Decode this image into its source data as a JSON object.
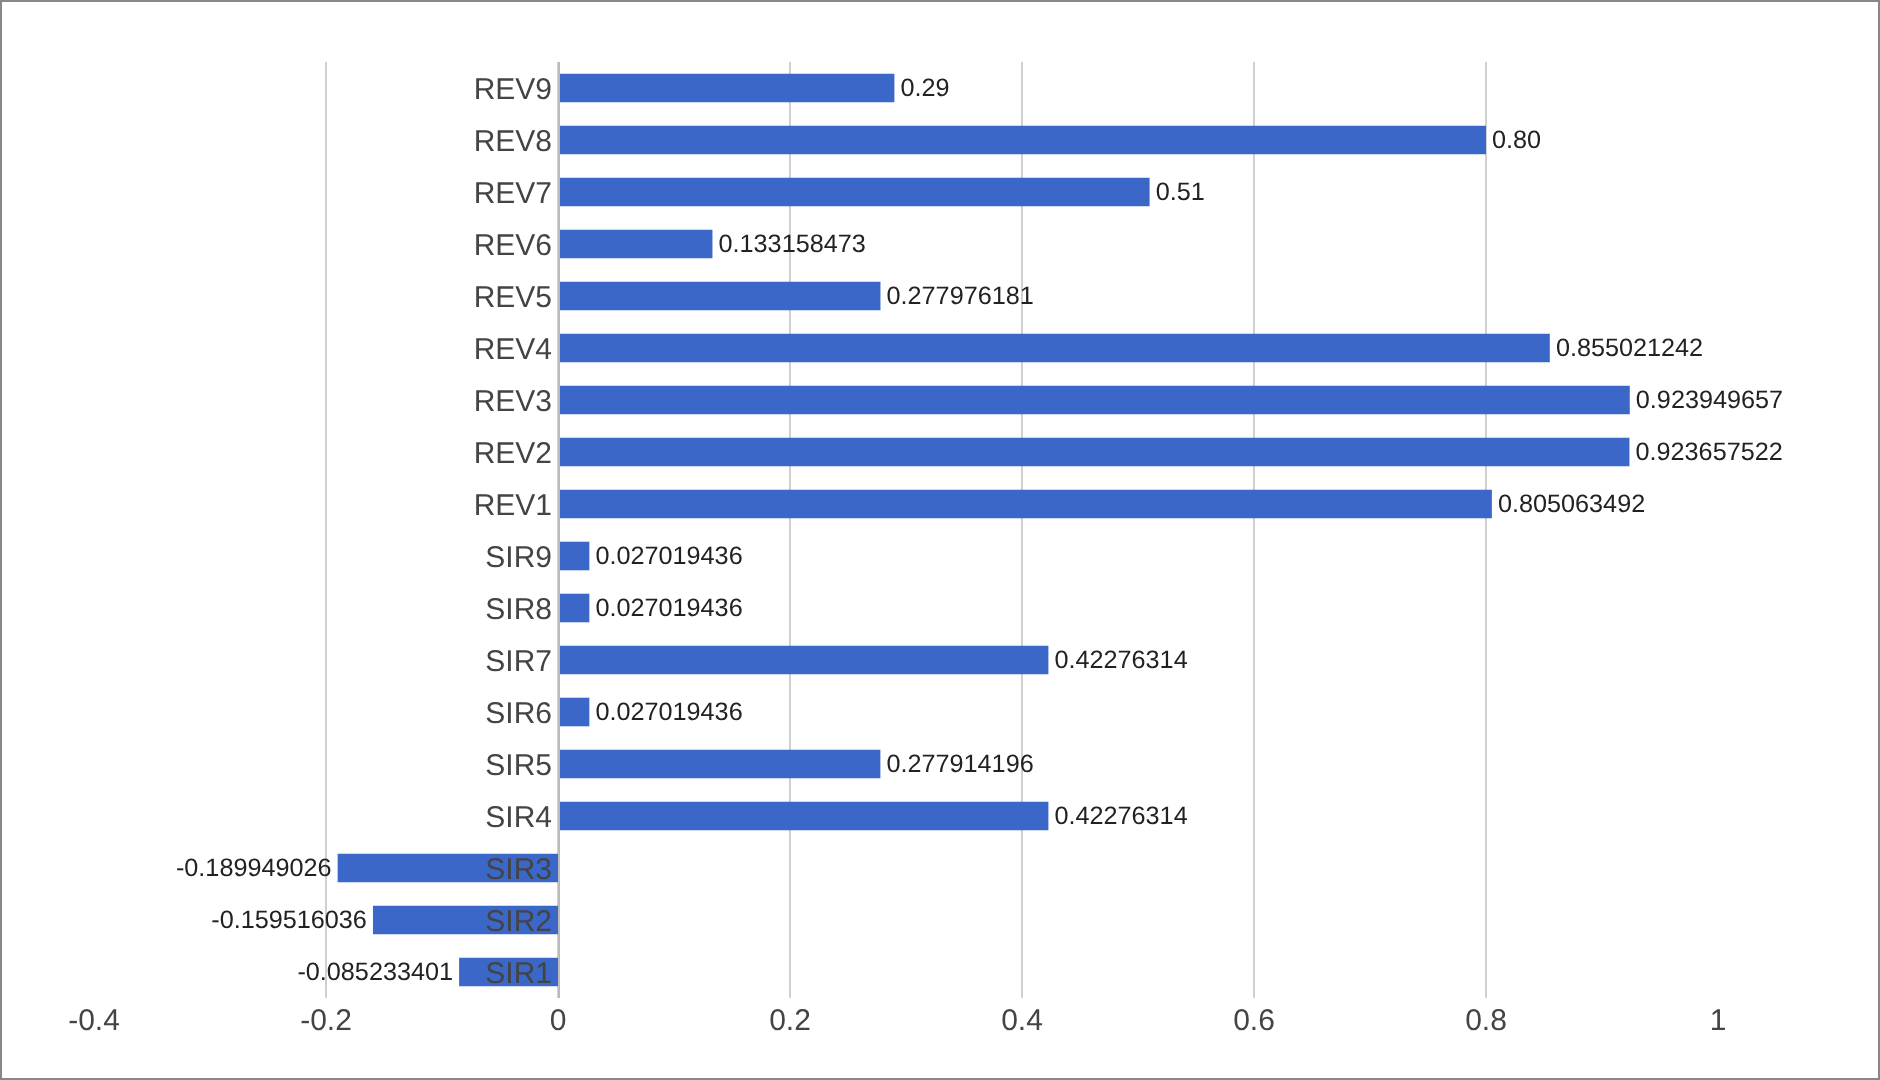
{
  "chart_data": {
    "type": "bar",
    "orientation": "horizontal",
    "categories": [
      "REV9",
      "REV8",
      "REV7",
      "REV6",
      "REV5",
      "REV4",
      "REV3",
      "REV2",
      "REV1",
      "SIR9",
      "SIR8",
      "SIR7",
      "SIR6",
      "SIR5",
      "SIR4",
      "SIR3",
      "SIR2",
      "SIR1"
    ],
    "values": [
      0.29,
      0.8,
      0.51,
      0.133158473,
      0.277976181,
      0.855021242,
      0.923949657,
      0.923657522,
      0.805063492,
      0.027019436,
      0.027019436,
      0.42276314,
      0.027019436,
      0.277914196,
      0.42276314,
      -0.189949026,
      -0.159516036,
      -0.085233401
    ],
    "value_labels": [
      "0.29",
      "0.80",
      "0.51",
      "0.133158473",
      "0.277976181",
      "0.855021242",
      "0.923949657",
      "0.923657522",
      "0.805063492",
      "0.027019436",
      "0.027019436",
      "0.42276314",
      "0.027019436",
      "0.277914196",
      "0.42276314",
      "-0.189949026",
      "-0.159516036",
      "-0.085233401"
    ],
    "color": "#3b67c9",
    "xlim": [
      -0.4,
      1
    ],
    "xticks": [
      -0.4,
      -0.2,
      0,
      0.2,
      0.4,
      0.6,
      0.8,
      1
    ],
    "grid": "x",
    "legend": false
  }
}
